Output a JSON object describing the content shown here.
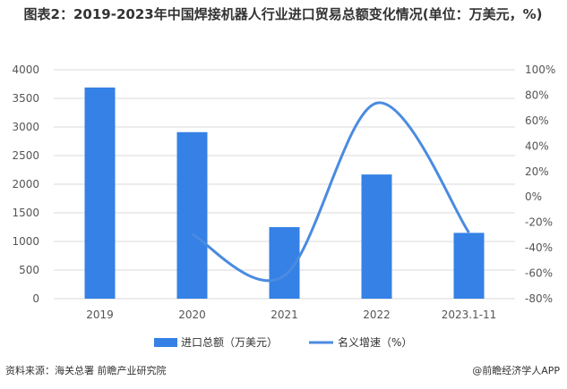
{
  "chart_data": {
    "type": "bar",
    "title": "图表2：2019-2023年中国焊接机器人行业进口贸易总额变化情况(单位：万美元，%)",
    "categories": [
      "2019",
      "2020",
      "2021",
      "2022",
      "2023.1-11"
    ],
    "series": [
      {
        "name": "进口总额（万美元）",
        "type": "bar",
        "axis": "left",
        "values": [
          3690,
          2910,
          1250,
          2170,
          1150
        ],
        "color": "#3581e6"
      },
      {
        "name": "名义增速（%）",
        "type": "line",
        "axis": "right",
        "values": [
          null,
          -29.3,
          -61.9,
          73.8,
          -28.0
        ],
        "color": "#4a8be0"
      }
    ],
    "ylim_left": [
      0,
      4000
    ],
    "yticks_left": [
      "0",
      "500",
      "1000",
      "1500",
      "2000",
      "2500",
      "3000",
      "3500",
      "4000"
    ],
    "ylim_right": [
      -80,
      100
    ],
    "yticks_right": [
      "-80%",
      "-60%",
      "-40%",
      "-20%",
      "0%",
      "20%",
      "40%",
      "60%",
      "80%",
      "100%"
    ],
    "grid": true,
    "legend": "bottom"
  },
  "footer": {
    "source": "资料来源：海关总署 前瞻产业研究院",
    "brand": "@前瞻经济学人APP"
  }
}
